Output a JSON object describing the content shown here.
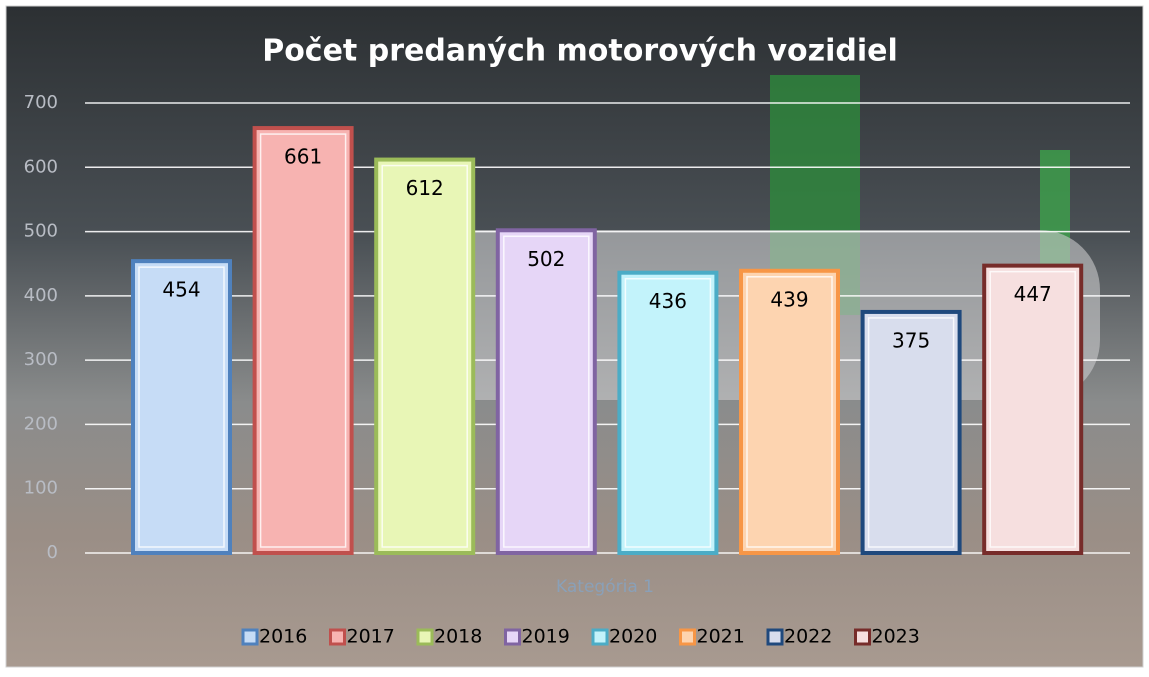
{
  "chart_data": {
    "type": "bar",
    "title": "Počet predaných motorových vozidiel",
    "categories": [
      "Kategória 1"
    ],
    "series": [
      {
        "name": "2016",
        "color": "#4f81bd",
        "fill": "#c6dcf6",
        "values": [
          454
        ]
      },
      {
        "name": "2017",
        "color": "#c0504d",
        "fill": "#f7b3b1",
        "values": [
          661
        ]
      },
      {
        "name": "2018",
        "color": "#9bbb59",
        "fill": "#e8f6b6",
        "values": [
          612
        ]
      },
      {
        "name": "2019",
        "color": "#8064a2",
        "fill": "#e6d6f7",
        "values": [
          502
        ]
      },
      {
        "name": "2020",
        "color": "#4bacc6",
        "fill": "#c3f3fb",
        "values": [
          436
        ]
      },
      {
        "name": "2021",
        "color": "#f79646",
        "fill": "#fdd4b0",
        "values": [
          439
        ]
      },
      {
        "name": "2022",
        "color": "#1f497d",
        "fill": "#d8dded",
        "values": [
          375
        ]
      },
      {
        "name": "2023",
        "color": "#772c2a",
        "fill": "#f6dfdf",
        "values": [
          447
        ]
      }
    ],
    "ylim": [
      0,
      700
    ],
    "yticks": [
      0,
      100,
      200,
      300,
      400,
      500,
      600,
      700
    ],
    "grid": true,
    "legend": "bottom"
  }
}
